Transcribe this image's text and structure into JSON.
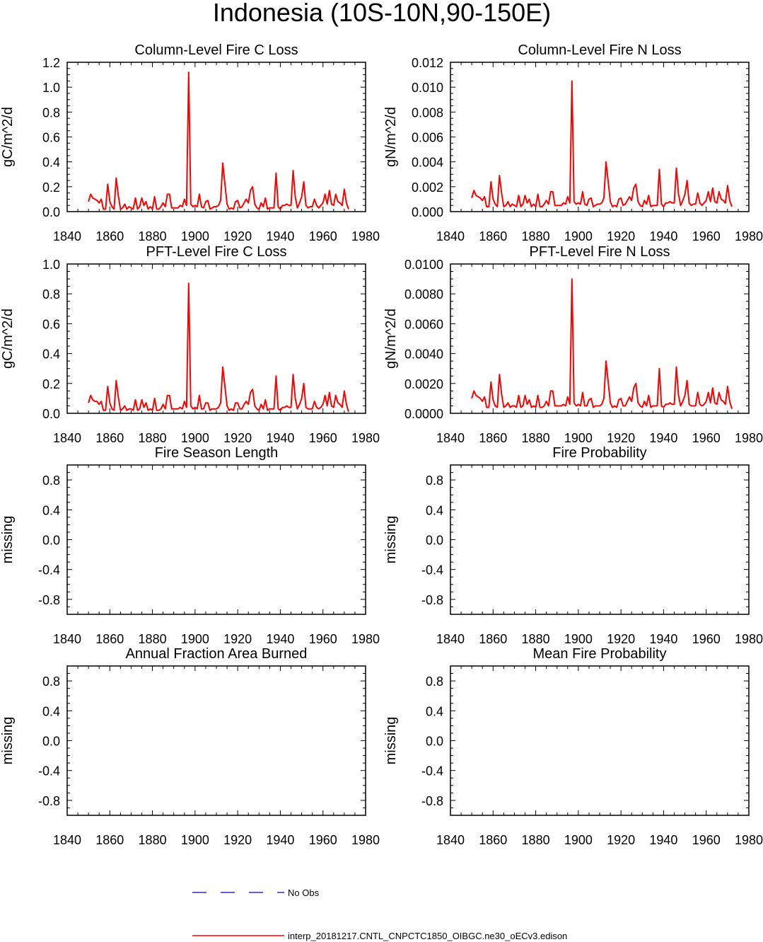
{
  "figure": {
    "title": "Indonesia (10S-10N,90-150E)"
  },
  "legend": {
    "no_obs": "No Obs",
    "model": "interp_20181217.CNTL_CNPCTC1850_OIBGC.ne30_oECv3.edison"
  },
  "colors": {
    "model_line": "#ff0000",
    "obs_line": "#0000aa",
    "axis": "#000000"
  },
  "chart_data": [
    {
      "type": "line",
      "title": "Column-Level Fire C Loss",
      "xlabel": "",
      "ylabel": "gC/m^2/d",
      "xlim": [
        1840,
        1980
      ],
      "ylim": [
        0,
        1.2
      ],
      "xticks": [
        1840,
        1860,
        1880,
        1900,
        1920,
        1940,
        1960,
        1980
      ],
      "yticks": [
        0,
        0.2,
        0.4,
        0.6,
        0.8,
        1.0,
        1.2
      ],
      "ytick_labels": [
        "0.0",
        "0.2",
        "0.4",
        "0.6",
        "0.8",
        "1.0",
        "1.2"
      ],
      "series": [
        {
          "name": "interp_20181217.CNTL_CNPCTC1850_OIBGC.ne30_oECv3.edison",
          "x_start": 1850,
          "values": [
            0.08,
            0.14,
            0.11,
            0.1,
            0.09,
            0.07,
            0.1,
            0.02,
            0.02,
            0.22,
            0.08,
            0.04,
            0.02,
            0.27,
            0.13,
            0.02,
            0.03,
            0.06,
            0.02,
            0.04,
            0.03,
            0.02,
            0.11,
            0.02,
            0.04,
            0.11,
            0.05,
            0.08,
            0.02,
            0.04,
            0.02,
            0.12,
            0.02,
            0.02,
            0.04,
            0.07,
            0.04,
            0.14,
            0.14,
            0.03,
            0.03,
            0.03,
            0.03,
            0.05,
            0.04,
            0.1,
            0.05,
            1.12,
            0.06,
            0.04,
            0.05,
            0.04,
            0.14,
            0.04,
            0.03,
            0.08,
            0.09,
            0.02,
            0.03,
            0.04,
            0.04,
            0.05,
            0.09,
            0.39,
            0.22,
            0.06,
            0.02,
            0.03,
            0.02,
            0.08,
            0.09,
            0.03,
            0.04,
            0.07,
            0.1,
            0.07,
            0.17,
            0.2,
            0.06,
            0.03,
            0.02,
            0.07,
            0.04,
            0.11,
            0.02,
            0.03,
            0.03,
            0.03,
            0.31,
            0.04,
            0.02,
            0.05,
            0.05,
            0.06,
            0.05,
            0.05,
            0.33,
            0.12,
            0.03,
            0.07,
            0.12,
            0.24,
            0.05,
            0.03,
            0.04,
            0.04,
            0.1,
            0.05,
            0.03,
            0.05,
            0.07,
            0.14,
            0.06,
            0.17,
            0.06,
            0.05,
            0.14,
            0.08,
            0.07,
            0.05,
            0.18,
            0.07,
            0.02
          ]
        }
      ]
    },
    {
      "type": "line",
      "title": "Column-Level Fire N Loss",
      "xlabel": "",
      "ylabel": "gN/m^2/d",
      "xlim": [
        1840,
        1980
      ],
      "ylim": [
        0,
        0.012
      ],
      "xticks": [
        1840,
        1860,
        1880,
        1900,
        1920,
        1940,
        1960,
        1980
      ],
      "yticks": [
        0,
        0.002,
        0.004,
        0.006,
        0.008,
        0.01,
        0.012
      ],
      "ytick_labels": [
        "0.000",
        "0.002",
        "0.004",
        "0.006",
        "0.008",
        "0.010",
        "0.012"
      ],
      "series": [
        {
          "name": "interp_20181217.CNTL_CNPCTC1850_OIBGC.ne30_oECv3.edison",
          "x_start": 1850,
          "values": [
            0.0011,
            0.0017,
            0.0013,
            0.0012,
            0.0011,
            0.0009,
            0.0012,
            0.0004,
            0.0004,
            0.0024,
            0.001,
            0.0006,
            0.0004,
            0.0029,
            0.0015,
            0.0004,
            0.0005,
            0.0008,
            0.0004,
            0.0006,
            0.0005,
            0.0004,
            0.0013,
            0.0004,
            0.0006,
            0.0013,
            0.0007,
            0.001,
            0.0004,
            0.0006,
            0.0004,
            0.0014,
            0.0004,
            0.0004,
            0.0006,
            0.0009,
            0.0006,
            0.0016,
            0.0016,
            0.0005,
            0.0005,
            0.0005,
            0.0005,
            0.0007,
            0.0006,
            0.0012,
            0.0007,
            0.0105,
            0.0008,
            0.0006,
            0.0007,
            0.0006,
            0.0016,
            0.0006,
            0.0005,
            0.001,
            0.0011,
            0.0004,
            0.0005,
            0.0006,
            0.0006,
            0.0007,
            0.0011,
            0.004,
            0.0024,
            0.0008,
            0.0004,
            0.0005,
            0.0004,
            0.001,
            0.0011,
            0.0005,
            0.0006,
            0.0009,
            0.0012,
            0.0009,
            0.0019,
            0.0022,
            0.0008,
            0.0005,
            0.0004,
            0.0009,
            0.0006,
            0.0013,
            0.0004,
            0.0005,
            0.0005,
            0.0005,
            0.0034,
            0.0006,
            0.0004,
            0.0007,
            0.0007,
            0.0008,
            0.0007,
            0.0007,
            0.0035,
            0.0014,
            0.0005,
            0.0009,
            0.0014,
            0.0025,
            0.0007,
            0.0005,
            0.0006,
            0.0006,
            0.0015,
            0.0007,
            0.0005,
            0.0007,
            0.0009,
            0.0016,
            0.0008,
            0.0019,
            0.0008,
            0.0007,
            0.0016,
            0.001,
            0.0009,
            0.0007,
            0.0021,
            0.0009,
            0.0004
          ]
        }
      ]
    },
    {
      "type": "line",
      "title": "PFT-Level Fire C Loss",
      "xlabel": "",
      "ylabel": "gC/m^2/d",
      "xlim": [
        1840,
        1980
      ],
      "ylim": [
        0,
        1.0
      ],
      "xticks": [
        1840,
        1860,
        1880,
        1900,
        1920,
        1940,
        1960,
        1980
      ],
      "yticks": [
        0,
        0.2,
        0.4,
        0.6,
        0.8,
        1.0
      ],
      "ytick_labels": [
        "0.0",
        "0.2",
        "0.4",
        "0.6",
        "0.8",
        "1.0"
      ],
      "series": [
        {
          "name": "interp_20181217.CNTL_CNPCTC1850_OIBGC.ne30_oECv3.edison",
          "x_start": 1850,
          "values": [
            0.07,
            0.12,
            0.09,
            0.08,
            0.08,
            0.06,
            0.08,
            0.02,
            0.02,
            0.18,
            0.07,
            0.03,
            0.02,
            0.22,
            0.11,
            0.02,
            0.03,
            0.05,
            0.02,
            0.03,
            0.03,
            0.02,
            0.09,
            0.02,
            0.03,
            0.09,
            0.04,
            0.07,
            0.02,
            0.03,
            0.02,
            0.1,
            0.02,
            0.02,
            0.03,
            0.06,
            0.03,
            0.12,
            0.12,
            0.03,
            0.03,
            0.03,
            0.03,
            0.04,
            0.03,
            0.08,
            0.04,
            0.87,
            0.05,
            0.03,
            0.04,
            0.03,
            0.12,
            0.03,
            0.03,
            0.07,
            0.07,
            0.02,
            0.03,
            0.03,
            0.03,
            0.04,
            0.07,
            0.31,
            0.18,
            0.05,
            0.02,
            0.03,
            0.02,
            0.07,
            0.07,
            0.03,
            0.03,
            0.06,
            0.08,
            0.06,
            0.14,
            0.16,
            0.05,
            0.03,
            0.02,
            0.06,
            0.03,
            0.09,
            0.02,
            0.03,
            0.03,
            0.03,
            0.25,
            0.03,
            0.02,
            0.04,
            0.04,
            0.05,
            0.04,
            0.04,
            0.26,
            0.1,
            0.03,
            0.06,
            0.1,
            0.2,
            0.04,
            0.03,
            0.03,
            0.03,
            0.08,
            0.04,
            0.03,
            0.04,
            0.06,
            0.12,
            0.05,
            0.14,
            0.05,
            0.04,
            0.12,
            0.07,
            0.06,
            0.04,
            0.15,
            0.06,
            0.01
          ]
        }
      ]
    },
    {
      "type": "line",
      "title": "PFT-Level Fire N Loss",
      "xlabel": "",
      "ylabel": "gN/m^2/d",
      "xlim": [
        1840,
        1980
      ],
      "ylim": [
        0,
        0.01
      ],
      "xticks": [
        1840,
        1860,
        1880,
        1900,
        1920,
        1940,
        1960,
        1980
      ],
      "yticks": [
        0,
        0.002,
        0.004,
        0.006,
        0.008,
        0.01
      ],
      "ytick_labels": [
        "0.0000",
        "0.0020",
        "0.0040",
        "0.0060",
        "0.0080",
        "0.0100"
      ],
      "series": [
        {
          "name": "interp_20181217.CNTL_CNPCTC1850_OIBGC.ne30_oECv3.edison",
          "x_start": 1850,
          "values": [
            0.001,
            0.0015,
            0.0012,
            0.0011,
            0.001,
            0.0008,
            0.0011,
            0.0004,
            0.0004,
            0.0021,
            0.0009,
            0.0005,
            0.0004,
            0.0026,
            0.0013,
            0.0004,
            0.0005,
            0.0007,
            0.0004,
            0.0005,
            0.0005,
            0.0004,
            0.0012,
            0.0004,
            0.0005,
            0.0012,
            0.0006,
            0.0009,
            0.0004,
            0.0005,
            0.0004,
            0.0012,
            0.0004,
            0.0004,
            0.0005,
            0.0008,
            0.0005,
            0.0015,
            0.0015,
            0.0005,
            0.0005,
            0.0005,
            0.0005,
            0.0006,
            0.0005,
            0.0011,
            0.0006,
            0.009,
            0.0007,
            0.0005,
            0.0006,
            0.0005,
            0.0014,
            0.0005,
            0.0005,
            0.0009,
            0.001,
            0.0004,
            0.0005,
            0.0005,
            0.0005,
            0.0006,
            0.001,
            0.0035,
            0.0021,
            0.0007,
            0.0004,
            0.0005,
            0.0004,
            0.0009,
            0.001,
            0.0005,
            0.0005,
            0.0008,
            0.0011,
            0.0008,
            0.0017,
            0.002,
            0.0007,
            0.0005,
            0.0004,
            0.0008,
            0.0005,
            0.0012,
            0.0004,
            0.0005,
            0.0005,
            0.0005,
            0.003,
            0.0005,
            0.0004,
            0.0006,
            0.0006,
            0.0007,
            0.0006,
            0.0006,
            0.0031,
            0.0012,
            0.0005,
            0.0008,
            0.0012,
            0.0022,
            0.0006,
            0.0005,
            0.0005,
            0.0005,
            0.0014,
            0.0006,
            0.0005,
            0.0006,
            0.0008,
            0.0014,
            0.0007,
            0.0017,
            0.0007,
            0.0006,
            0.0014,
            0.0009,
            0.0008,
            0.0006,
            0.0018,
            0.0008,
            0.0003
          ]
        }
      ]
    },
    {
      "type": "line",
      "title": "Fire Season Length",
      "xlabel": "",
      "ylabel": "missing",
      "xlim": [
        1840,
        1980
      ],
      "ylim": [
        -1,
        1
      ],
      "xticks": [
        1840,
        1860,
        1880,
        1900,
        1920,
        1940,
        1960,
        1980
      ],
      "yticks": [
        -0.8,
        -0.4,
        0,
        0.4,
        0.8
      ],
      "ytick_labels": [
        "-0.8",
        "-0.4",
        "0.0",
        "0.4",
        "0.8"
      ],
      "series": []
    },
    {
      "type": "line",
      "title": "Fire Probability",
      "xlabel": "",
      "ylabel": "missing",
      "xlim": [
        1840,
        1980
      ],
      "ylim": [
        -1,
        1
      ],
      "xticks": [
        1840,
        1860,
        1880,
        1900,
        1920,
        1940,
        1960,
        1980
      ],
      "yticks": [
        -0.8,
        -0.4,
        0,
        0.4,
        0.8
      ],
      "ytick_labels": [
        "-0.8",
        "-0.4",
        "0.0",
        "0.4",
        "0.8"
      ],
      "series": []
    },
    {
      "type": "line",
      "title": "Annual Fraction Area Burned",
      "xlabel": "",
      "ylabel": "missing",
      "xlim": [
        1840,
        1980
      ],
      "ylim": [
        -1,
        1
      ],
      "xticks": [
        1840,
        1860,
        1880,
        1900,
        1920,
        1940,
        1960,
        1980
      ],
      "yticks": [
        -0.8,
        -0.4,
        0,
        0.4,
        0.8
      ],
      "ytick_labels": [
        "-0.8",
        "-0.4",
        "0.0",
        "0.4",
        "0.8"
      ],
      "series": []
    },
    {
      "type": "line",
      "title": "Mean Fire Probability",
      "xlabel": "",
      "ylabel": "missing",
      "xlim": [
        1840,
        1980
      ],
      "ylim": [
        -1,
        1
      ],
      "xticks": [
        1840,
        1860,
        1880,
        1900,
        1920,
        1940,
        1960,
        1980
      ],
      "yticks": [
        -0.8,
        -0.4,
        0,
        0.4,
        0.8
      ],
      "ytick_labels": [
        "-0.8",
        "-0.4",
        "0.0",
        "0.4",
        "0.8"
      ],
      "series": []
    }
  ]
}
